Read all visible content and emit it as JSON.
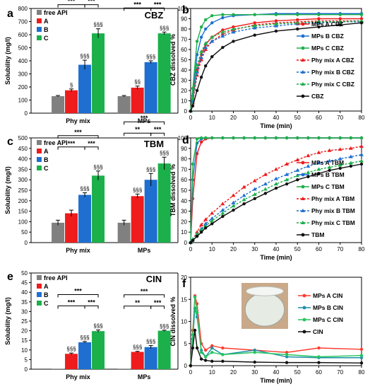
{
  "figure": {
    "panels": [
      "a",
      "b",
      "c",
      "d",
      "e",
      "f"
    ]
  },
  "colors": {
    "grey": "#808080",
    "red": "#ee1c1c",
    "blue": "#1e6fd0",
    "green": "#1bb04a",
    "black": "#111111",
    "cin_red": "#ff3b2f",
    "cin_teal": "#1f8fa8",
    "cin_green": "#22c55e"
  },
  "chart_data": [
    {
      "panel": "a",
      "type": "bar",
      "title": "CBZ",
      "ylabel": "Solubility (mg/l)",
      "ylim": [
        0,
        800
      ],
      "yticks": [
        "0",
        "100",
        "200",
        "300",
        "400",
        "500",
        "600",
        "700",
        "800"
      ],
      "categories": [
        "Phy mix",
        "MPs"
      ],
      "legend": [
        "free API",
        "A",
        "B",
        "C"
      ],
      "series": [
        {
          "name": "free API",
          "color": "#808080",
          "values": [
            130,
            130
          ],
          "errors": [
            5,
            5
          ],
          "labels": [
            "",
            ""
          ]
        },
        {
          "name": "A",
          "color": "#ee1c1c",
          "values": [
            175,
            195
          ],
          "errors": [
            10,
            12
          ],
          "labels": [
            "§",
            "§§"
          ]
        },
        {
          "name": "B",
          "color": "#1e6fd0",
          "values": [
            370,
            390
          ],
          "errors": [
            35,
            10
          ],
          "labels": [
            "§§§",
            "§§§"
          ]
        },
        {
          "name": "C",
          "color": "#1bb04a",
          "values": [
            610,
            610
          ],
          "errors": [
            35,
            10
          ],
          "labels": [
            "§§§",
            "§§§"
          ]
        }
      ],
      "brackets": [
        {
          "group": 0,
          "from": 0,
          "to": 3,
          "level": 2,
          "label": "***"
        },
        {
          "group": 0,
          "from": 0,
          "to": 2,
          "level": 1,
          "label": "***"
        },
        {
          "group": 0,
          "from": 2,
          "to": 3,
          "level": 1,
          "label": "***"
        },
        {
          "group": 1,
          "from": 0,
          "to": 3,
          "level": 2,
          "label": "***"
        },
        {
          "group": 1,
          "from": 0,
          "to": 2,
          "level": 1,
          "label": "***"
        },
        {
          "group": 1,
          "from": 2,
          "to": 3,
          "level": 1,
          "label": "***"
        }
      ]
    },
    {
      "panel": "b",
      "type": "line",
      "xlabel": "Time (min)",
      "ylabel": "CBZ dissolved %",
      "xlim": [
        0,
        80
      ],
      "ylim": [
        0,
        100
      ],
      "xticks": [
        "0",
        "10",
        "20",
        "30",
        "40",
        "50",
        "60",
        "70",
        "80"
      ],
      "yticks": [
        "0",
        "10",
        "20",
        "30",
        "40",
        "50",
        "60",
        "70",
        "80",
        "90",
        "100"
      ],
      "x": [
        0,
        1,
        3,
        5,
        7,
        10,
        15,
        20,
        30,
        40,
        50,
        60,
        70,
        80
      ],
      "series": [
        {
          "name": "MPs A CBZ",
          "color": "#ee1c1c",
          "dash": false,
          "marker": "circle",
          "values": [
            0,
            12,
            40,
            55,
            65,
            72,
            79,
            82,
            86,
            88,
            89,
            90,
            90,
            90
          ]
        },
        {
          "name": "MPs B CBZ",
          "color": "#1e6fd0",
          "dash": false,
          "marker": "circle",
          "values": [
            0,
            15,
            55,
            72,
            80,
            86,
            91,
            93,
            94,
            95,
            95,
            95,
            95,
            95
          ]
        },
        {
          "name": "MPs C CBZ",
          "color": "#1bb04a",
          "dash": false,
          "marker": "circle",
          "values": [
            0,
            22,
            68,
            82,
            89,
            93,
            94,
            94,
            94,
            94,
            94,
            94,
            94,
            94
          ]
        },
        {
          "name": "Phy mix A CBZ",
          "color": "#ee1c1c",
          "dash": true,
          "marker": "triangle",
          "values": [
            0,
            8,
            35,
            50,
            60,
            68,
            75,
            79,
            84,
            86,
            87,
            88,
            88,
            88
          ]
        },
        {
          "name": "Phy mix B CBZ",
          "color": "#1e6fd0",
          "dash": true,
          "marker": "triangle",
          "values": [
            0,
            10,
            38,
            52,
            62,
            68,
            73,
            77,
            81,
            83,
            85,
            86,
            87,
            87
          ]
        },
        {
          "name": "Phy mix C CBZ",
          "color": "#1bb04a",
          "dash": true,
          "marker": "triangle",
          "values": [
            0,
            12,
            45,
            58,
            66,
            72,
            77,
            80,
            83,
            85,
            86,
            87,
            87,
            88
          ]
        },
        {
          "name": "CBZ",
          "color": "#111111",
          "dash": false,
          "marker": "circle",
          "values": [
            0,
            5,
            20,
            33,
            44,
            53,
            62,
            68,
            74,
            78,
            80,
            82,
            84,
            86
          ]
        }
      ]
    },
    {
      "panel": "c",
      "type": "bar",
      "title": "TBM",
      "ylabel": "Solubility (mg/l)",
      "ylim": [
        0,
        500
      ],
      "yticks": [
        "0",
        "50",
        "100",
        "150",
        "200",
        "250",
        "300",
        "350",
        "400",
        "450",
        "500"
      ],
      "categories": [
        "Phy mix",
        "MPs"
      ],
      "legend": [
        "free API",
        "A",
        "B",
        "C"
      ],
      "series": [
        {
          "name": "free API",
          "color": "#808080",
          "values": [
            95,
            95
          ],
          "errors": [
            12,
            12
          ],
          "labels": [
            "",
            ""
          ]
        },
        {
          "name": "A",
          "color": "#ee1c1c",
          "values": [
            140,
            222
          ],
          "errors": [
            15,
            10
          ],
          "labels": [
            "",
            "§§§"
          ]
        },
        {
          "name": "B",
          "color": "#1e6fd0",
          "values": [
            228,
            300
          ],
          "errors": [
            10,
            30
          ],
          "labels": [
            "§§§",
            "§§§"
          ]
        },
        {
          "name": "C",
          "color": "#1bb04a",
          "values": [
            320,
            378
          ],
          "errors": [
            22,
            30
          ],
          "labels": [
            "§§§",
            "§§§"
          ]
        }
      ],
      "brackets": [
        {
          "group": 0,
          "from": 0,
          "to": 3,
          "level": 2,
          "label": "***"
        },
        {
          "group": 0,
          "from": 0,
          "to": 2,
          "level": 1,
          "label": "***"
        },
        {
          "group": 0,
          "from": 2,
          "to": 3,
          "level": 1,
          "label": "***"
        },
        {
          "group": 1,
          "from": 0,
          "to": 3,
          "level": 2,
          "label": "***"
        },
        {
          "group": 1,
          "from": 0,
          "to": 2,
          "level": 1,
          "label": "**"
        },
        {
          "group": 1,
          "from": 2,
          "to": 3,
          "level": 1,
          "label": "***"
        }
      ]
    },
    {
      "panel": "d",
      "type": "line",
      "xlabel": "Time (min)",
      "ylabel": "TBM dissolved %",
      "xlim": [
        0,
        80
      ],
      "ylim": [
        0,
        100
      ],
      "xticks": [
        "0",
        "10",
        "20",
        "30",
        "40",
        "50",
        "60",
        "70",
        "80"
      ],
      "yticks": [
        "0",
        "10",
        "20",
        "30",
        "40",
        "50",
        "60",
        "70",
        "80",
        "90",
        "100"
      ],
      "x": [
        0,
        1,
        3,
        5,
        7,
        10,
        15,
        20,
        25,
        30,
        35,
        40,
        45,
        50,
        55,
        60,
        65,
        70,
        75,
        80
      ],
      "series": [
        {
          "name": "MPs A TBM",
          "color": "#ee1c1c",
          "dash": false,
          "marker": "circle",
          "values": [
            0,
            42,
            85,
            96,
            99,
            100,
            100,
            100,
            100,
            100,
            100,
            100,
            100,
            100,
            100,
            100,
            100,
            100,
            100,
            100
          ]
        },
        {
          "name": "MPs B TBM",
          "color": "#1e6fd0",
          "dash": false,
          "marker": "circle",
          "values": [
            0,
            60,
            95,
            99,
            100,
            100,
            100,
            100,
            100,
            100,
            100,
            100,
            100,
            100,
            100,
            100,
            100,
            100,
            100,
            100
          ]
        },
        {
          "name": "MPs C TBM",
          "color": "#1bb04a",
          "dash": false,
          "marker": "circle",
          "values": [
            0,
            75,
            99,
            100,
            100,
            100,
            100,
            100,
            100,
            100,
            100,
            100,
            100,
            100,
            100,
            100,
            100,
            100,
            100,
            100
          ]
        },
        {
          "name": "Phy mix A TBM",
          "color": "#ee1c1c",
          "dash": true,
          "marker": "triangle",
          "values": [
            0,
            3,
            10,
            17,
            22,
            28,
            37,
            45,
            53,
            59,
            65,
            70,
            75,
            79,
            83,
            86,
            88,
            89,
            90,
            92
          ]
        },
        {
          "name": "Phy mix B TBM",
          "color": "#1e6fd0",
          "dash": true,
          "marker": "triangle",
          "values": [
            0,
            3,
            8,
            13,
            18,
            23,
            31,
            38,
            45,
            51,
            56,
            61,
            65,
            69,
            73,
            76,
            78,
            80,
            82,
            84
          ]
        },
        {
          "name": "Phy mix C TBM",
          "color": "#1bb04a",
          "dash": true,
          "marker": "triangle",
          "values": [
            0,
            3,
            8,
            12,
            16,
            21,
            28,
            35,
            41,
            46,
            51,
            56,
            60,
            64,
            67,
            70,
            72,
            74,
            76,
            78
          ]
        },
        {
          "name": "TBM",
          "color": "#111111",
          "dash": false,
          "marker": "circle",
          "values": [
            0,
            2,
            6,
            10,
            14,
            18,
            25,
            31,
            37,
            42,
            47,
            52,
            56,
            60,
            63,
            66,
            69,
            71,
            73,
            75
          ]
        }
      ]
    },
    {
      "panel": "e",
      "type": "bar",
      "title": "CIN",
      "ylabel": "Solubility (mg/l)",
      "ylim": [
        0,
        50
      ],
      "yticks": [
        "0",
        "5",
        "10",
        "15",
        "20",
        "25",
        "30",
        "35",
        "40",
        "45",
        "50"
      ],
      "categories": [
        "Phy mix",
        "MPs"
      ],
      "legend": [
        "free API",
        "A",
        "B",
        "C"
      ],
      "series": [
        {
          "name": "free API",
          "color": "#808080",
          "values": [
            0.1,
            0.1
          ],
          "errors": [
            0,
            0
          ],
          "labels": [
            "",
            ""
          ]
        },
        {
          "name": "A",
          "color": "#ee1c1c",
          "values": [
            8,
            9
          ],
          "errors": [
            0.4,
            0.3
          ],
          "labels": [
            "§§§",
            "§§§"
          ]
        },
        {
          "name": "B",
          "color": "#1e6fd0",
          "values": [
            14,
            11.5
          ],
          "errors": [
            0.4,
            0.8
          ],
          "labels": [
            "§§§",
            "§§§"
          ]
        },
        {
          "name": "C",
          "color": "#1bb04a",
          "values": [
            19.8,
            20
          ],
          "errors": [
            0.6,
            0.3
          ],
          "labels": [
            "§§§",
            "§§§"
          ]
        }
      ],
      "brackets": [
        {
          "group": 0,
          "from": 0,
          "to": 3,
          "level": 2,
          "label": "***"
        },
        {
          "group": 0,
          "from": 0,
          "to": 2,
          "level": 1,
          "label": "***"
        },
        {
          "group": 0,
          "from": 2,
          "to": 3,
          "level": 1,
          "label": "***"
        },
        {
          "group": 1,
          "from": 0,
          "to": 3,
          "level": 2,
          "label": "***"
        },
        {
          "group": 1,
          "from": 0,
          "to": 2,
          "level": 1,
          "label": "**"
        },
        {
          "group": 1,
          "from": 2,
          "to": 3,
          "level": 1,
          "label": "***"
        }
      ]
    },
    {
      "panel": "f",
      "type": "line",
      "xlabel": "Time (min)",
      "ylabel": "CIN dissolved %",
      "xlim": [
        0,
        80
      ],
      "ylim": [
        0,
        20
      ],
      "xticks": [
        "0",
        "10",
        "20",
        "30",
        "40",
        "50",
        "60",
        "70",
        "80"
      ],
      "yticks": [
        "0",
        "5",
        "10",
        "15",
        "20"
      ],
      "x": [
        0,
        1,
        2,
        3,
        5,
        7,
        10,
        15,
        30,
        45,
        60,
        80
      ],
      "series": [
        {
          "name": "MPs A CIN",
          "color": "#ff3b2f",
          "dash": false,
          "marker": "circle",
          "values": [
            0,
            8,
            15.8,
            14,
            5,
            3.5,
            4.5,
            4,
            3.5,
            3,
            4,
            3.7
          ]
        },
        {
          "name": "MPs B CIN",
          "color": "#1f8fa8",
          "dash": false,
          "marker": "circle",
          "values": [
            0,
            6,
            13,
            11,
            3.5,
            2,
            4,
            2.5,
            3.5,
            2,
            1.8,
            1.8
          ]
        },
        {
          "name": "MPs C CIN",
          "color": "#22c55e",
          "dash": false,
          "marker": "circle",
          "values": [
            0,
            7,
            15.5,
            12,
            3,
            2,
            3,
            2.5,
            3,
            2.5,
            2,
            2.3
          ]
        },
        {
          "name": "CIN",
          "color": "#111111",
          "dash": false,
          "marker": "circle",
          "values": [
            0,
            4,
            8,
            4,
            1.5,
            1.2,
            1,
            1,
            0.8,
            0.7,
            0.7,
            0.6
          ]
        }
      ]
    }
  ]
}
